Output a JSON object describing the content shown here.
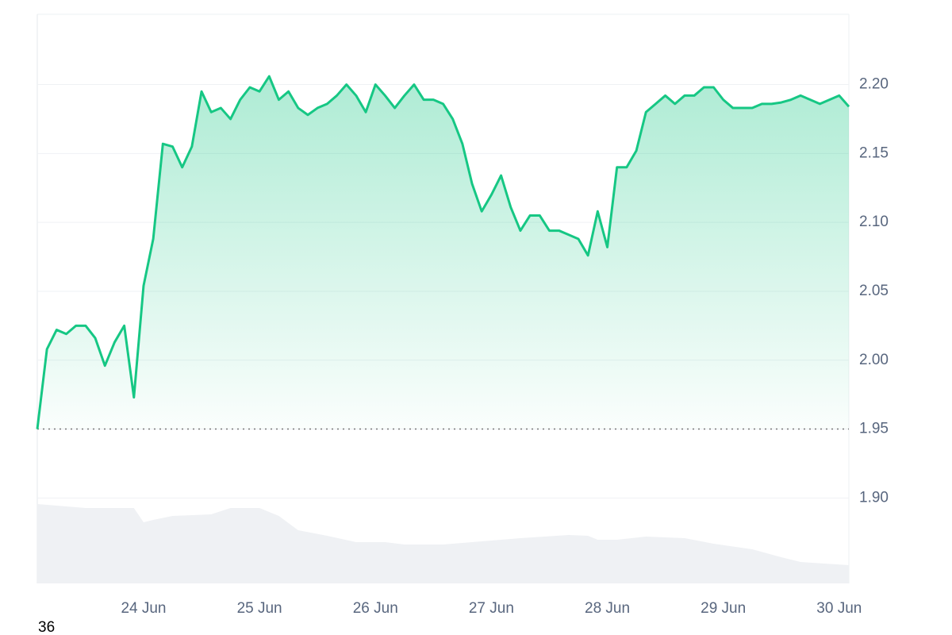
{
  "chart_data": {
    "type": "line",
    "x": [
      0,
      2,
      4,
      6,
      8,
      10,
      12,
      14,
      16,
      18,
      20,
      22,
      24,
      26,
      28,
      30,
      32,
      34,
      36,
      38,
      40,
      42,
      44,
      46,
      48,
      50,
      52,
      54,
      56,
      58,
      60,
      62,
      64,
      66,
      68,
      70,
      72,
      74,
      76,
      78,
      80,
      82,
      84,
      86,
      88,
      90,
      92,
      94,
      96,
      98,
      100,
      102,
      104,
      106,
      108,
      110,
      112,
      114,
      116,
      118,
      120,
      122,
      124,
      126,
      128,
      130,
      132,
      134,
      136,
      138,
      140,
      142,
      144,
      146,
      148,
      150,
      152,
      154,
      156,
      158,
      160,
      162,
      164,
      166,
      168
    ],
    "values": [
      1.95,
      2.008,
      2.022,
      2.019,
      2.025,
      2.025,
      2.016,
      1.996,
      2.013,
      2.025,
      1.973,
      2.054,
      2.088,
      2.157,
      2.155,
      2.14,
      2.155,
      2.195,
      2.18,
      2.183,
      2.175,
      2.189,
      2.198,
      2.195,
      2.206,
      2.189,
      2.195,
      2.183,
      2.178,
      2.183,
      2.186,
      2.192,
      2.2,
      2.192,
      2.18,
      2.2,
      2.192,
      2.183,
      2.192,
      2.2,
      2.189,
      2.189,
      2.186,
      2.175,
      2.157,
      2.128,
      2.108,
      2.12,
      2.134,
      2.111,
      2.094,
      2.105,
      2.105,
      2.094,
      2.094,
      2.091,
      2.088,
      2.076,
      2.108,
      2.082,
      2.14,
      2.14,
      2.152,
      2.18,
      2.186,
      2.192,
      2.186,
      2.192,
      2.192,
      2.198,
      2.198,
      2.189,
      2.183,
      2.183,
      2.183,
      2.186,
      2.186,
      2.187,
      2.189,
      2.192,
      2.189,
      2.186,
      2.189,
      2.192,
      2.184
    ],
    "color": "#16c784",
    "baseline": 1.95,
    "xlim": [
      0,
      168
    ],
    "ylim": [
      1.838,
      2.251
    ],
    "xticks": [
      {
        "value": 22,
        "label": "24 Jun"
      },
      {
        "value": 46,
        "label": "25 Jun"
      },
      {
        "value": 70,
        "label": "26 Jun"
      },
      {
        "value": 94,
        "label": "27 Jun"
      },
      {
        "value": 118,
        "label": "28 Jun"
      },
      {
        "value": 142,
        "label": "29 Jun"
      },
      {
        "value": 166,
        "label": "30 Jun"
      }
    ],
    "yticks": [
      {
        "value": 1.9,
        "label": "1.90"
      },
      1.95,
      {
        "value": 2.0,
        "label": "2.00"
      },
      2.05,
      {
        "value": 2.1,
        "label": "2.10"
      },
      2.15,
      {
        "value": 2.2,
        "label": "2.20"
      }
    ],
    "grid": true,
    "volume": {
      "color": "#eff1f4",
      "x": [
        0,
        10,
        20,
        22,
        24,
        28,
        36,
        40,
        46,
        50,
        54,
        60,
        66,
        72,
        76,
        84,
        90,
        100,
        110,
        114,
        116,
        120,
        126,
        134,
        140,
        148,
        154,
        158,
        168
      ],
      "values": [
        100,
        95,
        95,
        77,
        80,
        85,
        87,
        95,
        95,
        85,
        67,
        60,
        52,
        52,
        49,
        49,
        52,
        57,
        61,
        60,
        55,
        55,
        59,
        57,
        50,
        43,
        33,
        27,
        23
      ]
    }
  },
  "footer": "36"
}
